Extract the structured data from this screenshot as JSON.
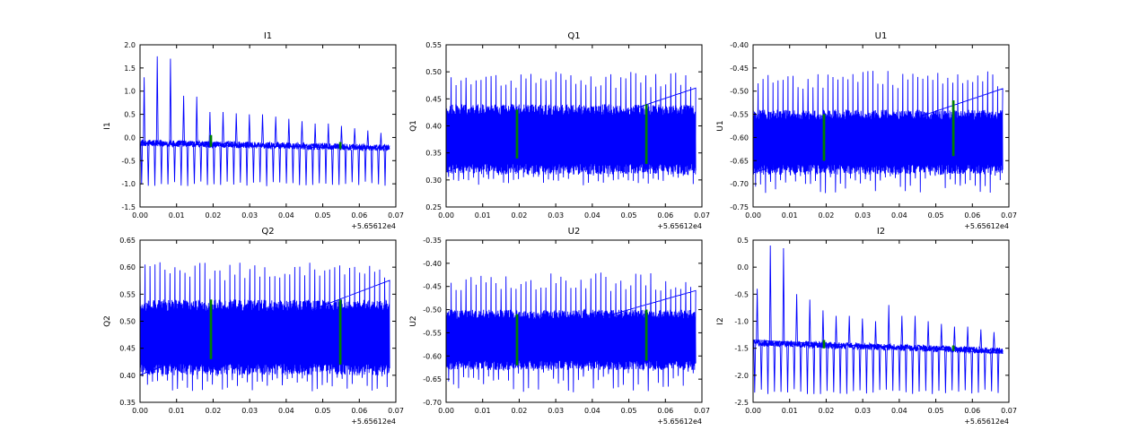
{
  "chart_data": [
    {
      "type": "line",
      "title": "I1",
      "ylabel": "I1",
      "xlim": [
        0.0,
        0.07
      ],
      "ylim": [
        -1.5,
        2.0
      ],
      "xticks": [
        "0.00",
        "0.01",
        "0.02",
        "0.03",
        "0.04",
        "0.05",
        "0.06",
        "0.07"
      ],
      "yticks": [
        "-1.5",
        "-1.0",
        "-0.5",
        "0.0",
        "0.5",
        "1.0",
        "1.5",
        "2.0"
      ],
      "x_offset_label": "+5.65612e4",
      "x_range": [
        0.0,
        0.0683
      ],
      "series": [
        {
          "color": "#0000ff",
          "baseline_start": -0.12,
          "baseline_end": -0.22,
          "noise": 0.07,
          "spike_interval": 0.0018,
          "spikes_up": [
            1.3,
            1.75,
            1.7,
            0.9,
            0.88,
            0.55,
            0.55,
            0.52,
            0.5,
            0.5,
            0.45,
            0.4,
            0.35,
            0.3,
            0.3,
            0.25,
            0.2,
            0.15,
            0.1
          ],
          "spike_down": -1.0
        },
        {
          "color": "#008000",
          "segments": [
            [
              0.0194,
              -0.2,
              0.05
            ],
            [
              0.0548,
              -0.25,
              -0.1
            ]
          ]
        }
      ]
    },
    {
      "type": "line",
      "title": "Q1",
      "ylabel": "Q1",
      "xlim": [
        0.0,
        0.07
      ],
      "ylim": [
        0.25,
        0.55
      ],
      "xticks": [
        "0.00",
        "0.01",
        "0.02",
        "0.03",
        "0.04",
        "0.05",
        "0.06",
        "0.07"
      ],
      "yticks": [
        "0.25",
        "0.30",
        "0.35",
        "0.40",
        "0.45",
        "0.50",
        "0.55"
      ],
      "x_offset_label": "+5.65612e4",
      "x_range": [
        0.0,
        0.0683
      ],
      "series": [
        {
          "color": "#0000ff",
          "band": [
            0.31,
            0.44
          ],
          "spikes_up_max": 0.5,
          "spikes_down_min": 0.29
        },
        {
          "color": "#008000",
          "segments": [
            [
              0.0194,
              0.34,
              0.43
            ],
            [
              0.0548,
              0.33,
              0.44
            ]
          ]
        }
      ]
    },
    {
      "type": "line",
      "title": "U1",
      "ylabel": "U1",
      "xlim": [
        0.0,
        0.07
      ],
      "ylim": [
        -0.75,
        -0.4
      ],
      "xticks": [
        "0.00",
        "0.01",
        "0.02",
        "0.03",
        "0.04",
        "0.05",
        "0.06",
        "0.07"
      ],
      "yticks": [
        "-0.75",
        "-0.70",
        "-0.65",
        "-0.60",
        "-0.55",
        "-0.50",
        "-0.45",
        "-0.40"
      ],
      "x_offset_label": "+5.65612e4",
      "x_range": [
        0.0,
        0.0683
      ],
      "series": [
        {
          "color": "#0000ff",
          "band": [
            -0.68,
            -0.54
          ],
          "spikes_up_max": -0.45,
          "spikes_down_min": -0.72
        },
        {
          "color": "#008000",
          "segments": [
            [
              0.0194,
              -0.65,
              -0.55
            ],
            [
              0.0548,
              -0.64,
              -0.52
            ]
          ]
        }
      ]
    },
    {
      "type": "line",
      "title": "Q2",
      "ylabel": "Q2",
      "xlim": [
        0.0,
        0.07
      ],
      "ylim": [
        0.35,
        0.65
      ],
      "xticks": [
        "0.00",
        "0.01",
        "0.02",
        "0.03",
        "0.04",
        "0.05",
        "0.06",
        "0.07"
      ],
      "yticks": [
        "0.35",
        "0.40",
        "0.45",
        "0.50",
        "0.55",
        "0.60",
        "0.65"
      ],
      "x_offset_label": "+5.65612e4",
      "x_range": [
        0.0,
        0.0683
      ],
      "series": [
        {
          "color": "#0000ff",
          "band": [
            0.4,
            0.54
          ],
          "spikes_up_max": 0.61,
          "spikes_down_min": 0.37
        },
        {
          "color": "#008000",
          "segments": [
            [
              0.0194,
              0.43,
              0.54
            ],
            [
              0.0548,
              0.42,
              0.54
            ]
          ]
        }
      ]
    },
    {
      "type": "line",
      "title": "U2",
      "ylabel": "U2",
      "xlim": [
        0.0,
        0.07
      ],
      "ylim": [
        -0.7,
        -0.35
      ],
      "xticks": [
        "0.00",
        "0.01",
        "0.02",
        "0.03",
        "0.04",
        "0.05",
        "0.06",
        "0.07"
      ],
      "yticks": [
        "-0.70",
        "-0.65",
        "-0.60",
        "-0.55",
        "-0.50",
        "-0.45",
        "-0.40",
        "-0.35"
      ],
      "x_offset_label": "+5.65612e4",
      "x_range": [
        0.0,
        0.0683
      ],
      "series": [
        {
          "color": "#0000ff",
          "band": [
            -0.63,
            -0.5
          ],
          "spikes_up_max": -0.42,
          "spikes_down_min": -0.68
        },
        {
          "color": "#008000",
          "segments": [
            [
              0.0194,
              -0.62,
              -0.51
            ],
            [
              0.0548,
              -0.61,
              -0.5
            ]
          ]
        }
      ]
    },
    {
      "type": "line",
      "title": "I2",
      "ylabel": "I2",
      "xlim": [
        0.0,
        0.07
      ],
      "ylim": [
        -2.5,
        0.5
      ],
      "xticks": [
        "0.00",
        "0.01",
        "0.02",
        "0.03",
        "0.04",
        "0.05",
        "0.06",
        "0.07"
      ],
      "yticks": [
        "-2.5",
        "-2.0",
        "-1.5",
        "-1.0",
        "-0.5",
        "0.0",
        "0.5"
      ],
      "x_offset_label": "+5.65612e4",
      "x_range": [
        0.0,
        0.0683
      ],
      "series": [
        {
          "color": "#0000ff",
          "baseline_start": -1.4,
          "baseline_end": -1.55,
          "noise": 0.06,
          "spike_interval": 0.0018,
          "spikes_up": [
            -0.4,
            0.4,
            0.35,
            -0.5,
            -0.6,
            -0.8,
            -0.9,
            -0.9,
            -0.95,
            -1.0,
            -0.7,
            -0.9,
            -0.9,
            -1.0,
            -1.05,
            -1.1,
            -1.1,
            -1.15,
            -1.2
          ],
          "spike_down": -2.3
        },
        {
          "color": "#008000",
          "segments": [
            [
              0.0194,
              -1.5,
              -1.35
            ],
            [
              0.0548,
              -1.55,
              -1.45
            ]
          ]
        }
      ]
    }
  ]
}
